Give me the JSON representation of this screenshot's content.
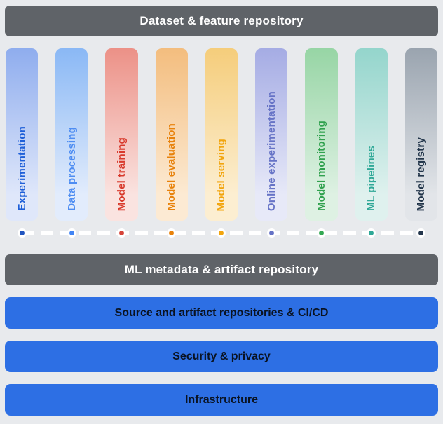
{
  "top_bar": {
    "label": "Dataset & feature repository"
  },
  "lanes": [
    {
      "label": "Experimentation",
      "text_color": "#1e5fd8",
      "bar_top": "#8fadee",
      "bar_bottom": "#dfe7fa",
      "dot_color": "#2155c0"
    },
    {
      "label": "Data processing",
      "text_color": "#4e8df2",
      "bar_top": "#8ab8f5",
      "bar_bottom": "#e2ecfc",
      "dot_color": "#4285f4"
    },
    {
      "label": "Model training",
      "text_color": "#d83a2c",
      "bar_top": "#ec9187",
      "bar_bottom": "#fae3e0",
      "dot_color": "#d6453a"
    },
    {
      "label": "Model evaluation",
      "text_color": "#e8820b",
      "bar_top": "#f3bd7e",
      "bar_bottom": "#fcead3",
      "dot_color": "#e8820b"
    },
    {
      "label": "Model serving",
      "text_color": "#f2a50e",
      "bar_top": "#f5cd7b",
      "bar_bottom": "#fceed1",
      "dot_color": "#f2a50e"
    },
    {
      "label": "Online experimentation",
      "text_color": "#6673c6",
      "bar_top": "#a5ace4",
      "bar_bottom": "#e7e9f8",
      "dot_color": "#6673c6"
    },
    {
      "label": "Model monitoring",
      "text_color": "#30a14e",
      "bar_top": "#97d5a5",
      "bar_bottom": "#def1e3",
      "dot_color": "#34a853"
    },
    {
      "label": "ML pipelines",
      "text_color": "#2fa897",
      "bar_top": "#94d5cc",
      "bar_bottom": "#dff1ee",
      "dot_color": "#2fa897"
    },
    {
      "label": "Model registry",
      "text_color": "#22354a",
      "bar_top": "#9aa4af",
      "bar_bottom": "#e2e5e9",
      "dot_color": "#24374d"
    }
  ],
  "metadata_bar": {
    "label": "ML metadata & artifact repository"
  },
  "bottom_bars": [
    {
      "label": "Source and artifact repositories & CI/CD"
    },
    {
      "label": "Security & privacy"
    },
    {
      "label": "Infrastructure"
    }
  ],
  "colors": {
    "background": "#e8eaed",
    "gray_bar": "#5f6368",
    "gray_bar_text": "#ffffff",
    "blue_bar": "#2d6fe4",
    "blue_bar_text": "#0a1322",
    "timeline_line": "#ffffff"
  }
}
